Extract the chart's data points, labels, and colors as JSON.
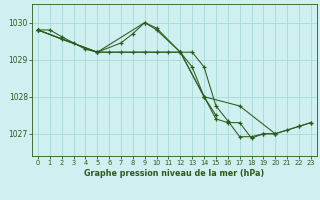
{
  "title": "Graphe pression niveau de la mer (hPa)",
  "background_color": "#cff0f0",
  "line_color": "#2d5a1b",
  "grid_color": "#a8d8d8",
  "ylim": [
    1026.4,
    1030.5
  ],
  "yticks": [
    1027,
    1028,
    1029,
    1030
  ],
  "xlim": [
    -0.5,
    23.5
  ],
  "xticks": [
    0,
    1,
    2,
    3,
    4,
    5,
    6,
    7,
    8,
    9,
    10,
    11,
    12,
    13,
    14,
    15,
    16,
    17,
    18,
    19,
    20,
    21,
    22,
    23
  ],
  "line1_x": [
    0,
    1,
    2,
    3,
    4,
    5,
    6,
    7,
    8,
    9,
    10,
    11,
    12,
    13,
    14,
    15,
    16,
    17,
    18,
    19,
    20,
    21,
    22,
    23
  ],
  "line1_y": [
    1029.8,
    1029.8,
    1029.62,
    1029.45,
    1029.28,
    1029.2,
    1029.2,
    1029.2,
    1029.2,
    1029.2,
    1029.2,
    1029.2,
    1029.2,
    1029.2,
    1028.8,
    1027.75,
    1027.35,
    1026.92,
    1026.92,
    1027.0,
    1027.0,
    1027.1,
    1027.2,
    1027.3
  ],
  "line2_x": [
    0,
    2,
    5,
    7,
    8,
    9,
    10,
    12,
    14,
    15
  ],
  "line2_y": [
    1029.8,
    1029.55,
    1029.2,
    1029.45,
    1029.7,
    1030.0,
    1029.85,
    1029.2,
    1028.0,
    1027.5
  ],
  "line3_x": [
    0,
    5,
    9,
    10,
    12,
    13,
    14,
    15,
    16,
    17,
    18,
    19,
    20
  ],
  "line3_y": [
    1029.8,
    1029.2,
    1030.0,
    1029.8,
    1029.2,
    1028.8,
    1028.0,
    1027.4,
    1027.3,
    1027.3,
    1026.88,
    1027.0,
    1027.0
  ],
  "line4_x": [
    0,
    5,
    12,
    14,
    17,
    20,
    22,
    23
  ],
  "line4_y": [
    1029.8,
    1029.2,
    1029.2,
    1028.0,
    1027.75,
    1027.0,
    1027.2,
    1027.3
  ]
}
